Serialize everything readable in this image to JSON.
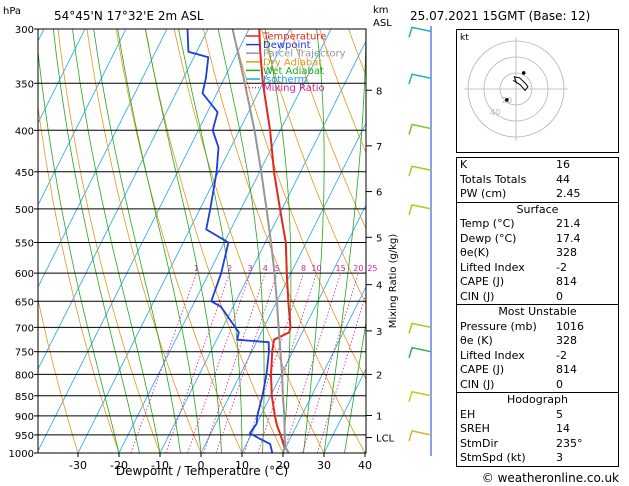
{
  "header": {
    "location": "54°45'N  17°32'E  2m  ASL",
    "datetime": "25.07.2021  15GMT  (Base: 12)",
    "p_unit": "hPa",
    "km_label": "km",
    "asl_label": "ASL",
    "mr_axis_label": "Mixing Ratio (g/kg)",
    "footer": "© weatheronline.co.uk"
  },
  "chart_data": {
    "type": "line",
    "title": "",
    "xlabel": "Dewpoint / Temperature (°C)",
    "ylabel": "hPa",
    "xlim": [
      -35,
      40
    ],
    "ylim": [
      1000,
      300
    ],
    "yscale": "log",
    "skew": true,
    "xticks": [
      -30,
      -20,
      -10,
      0,
      10,
      20,
      30,
      40
    ],
    "pressure_levels": [
      300,
      350,
      400,
      450,
      500,
      550,
      600,
      650,
      700,
      750,
      800,
      850,
      900,
      950,
      1000
    ],
    "legend": {
      "position": "top-center",
      "entries": [
        {
          "name": "Temperature",
          "color": "#e0281e",
          "style": "solid"
        },
        {
          "name": "Dewpoint",
          "color": "#1e3cdc",
          "style": "solid"
        },
        {
          "name": "Parcel Trajectory",
          "color": "#969696",
          "style": "solid"
        },
        {
          "name": "Dry Adiabat",
          "color": "#e6961e",
          "style": "solid"
        },
        {
          "name": "Wet Adiabat",
          "color": "#22a81e",
          "style": "solid"
        },
        {
          "name": "Isotherm",
          "color": "#1ea0e6",
          "style": "solid"
        },
        {
          "name": "Mixing Ratio",
          "color": "#d21ea0",
          "style": "dotted"
        }
      ]
    },
    "series": [
      {
        "name": "Temperature",
        "color": "#e0281e",
        "points": [
          [
            1000,
            21.4
          ],
          [
            975,
            19.0
          ],
          [
            950,
            17.2
          ],
          [
            925,
            15.2
          ],
          [
            900,
            13.5
          ],
          [
            850,
            10.3
          ],
          [
            800,
            7.5
          ],
          [
            750,
            5.0
          ],
          [
            725,
            4.0
          ],
          [
            710,
            6.8
          ],
          [
            700,
            6.5
          ],
          [
            650,
            2.8
          ],
          [
            600,
            -1.0
          ],
          [
            550,
            -5.0
          ],
          [
            500,
            -10.5
          ],
          [
            450,
            -16.5
          ],
          [
            400,
            -22.5
          ],
          [
            350,
            -30.0
          ],
          [
            320,
            -34.5
          ],
          [
            300,
            -37.5
          ]
        ]
      },
      {
        "name": "Dewpoint",
        "color": "#1e3cdc",
        "points": [
          [
            1000,
            17.4
          ],
          [
            975,
            15.8
          ],
          [
            960,
            12.5
          ],
          [
            945,
            9.5
          ],
          [
            920,
            10.0
          ],
          [
            900,
            9.2
          ],
          [
            850,
            8.0
          ],
          [
            800,
            6.4
          ],
          [
            750,
            4.2
          ],
          [
            730,
            3.0
          ],
          [
            725,
            -5.0
          ],
          [
            710,
            -5.5
          ],
          [
            660,
            -13.0
          ],
          [
            650,
            -16.0
          ],
          [
            600,
            -17.0
          ],
          [
            550,
            -19.0
          ],
          [
            530,
            -26.0
          ],
          [
            510,
            -27.0
          ],
          [
            500,
            -27.5
          ],
          [
            450,
            -30.5
          ],
          [
            420,
            -33.0
          ],
          [
            400,
            -36.5
          ],
          [
            380,
            -37.5
          ],
          [
            360,
            -43.5
          ],
          [
            345,
            -44.5
          ],
          [
            325,
            -46.5
          ],
          [
            320,
            -52.0
          ],
          [
            300,
            -55.0
          ]
        ]
      },
      {
        "name": "Parcel Trajectory",
        "color": "#969696",
        "points": [
          [
            1000,
            21.4
          ],
          [
            985,
            20.0
          ],
          [
            975,
            19.4
          ],
          [
            950,
            18.2
          ],
          [
            900,
            15.8
          ],
          [
            850,
            13.0
          ],
          [
            800,
            10.2
          ],
          [
            750,
            7.0
          ],
          [
            700,
            3.6
          ],
          [
            650,
            0.0
          ],
          [
            600,
            -4.0
          ],
          [
            550,
            -8.6
          ],
          [
            500,
            -13.8
          ],
          [
            450,
            -19.6
          ],
          [
            400,
            -26.3
          ],
          [
            350,
            -34.4
          ],
          [
            300,
            -44.0
          ]
        ]
      }
    ],
    "dry_adiabats_theta_C": [
      -30,
      -20,
      -10,
      0,
      10,
      20,
      30,
      40,
      50,
      60,
      70,
      80,
      90,
      100,
      110,
      120,
      130
    ],
    "wet_adiabats_C": [
      -20,
      -15,
      -10,
      -5,
      0,
      5,
      10,
      15,
      20,
      25,
      30,
      35
    ],
    "isotherms_C": [
      -100,
      -90,
      -80,
      -70,
      -60,
      -50,
      -40,
      -30,
      -20,
      -10,
      0,
      10,
      20,
      30,
      40
    ],
    "mixing_ratio_lines": [
      1,
      2,
      3,
      4,
      5,
      8,
      10,
      15,
      20,
      25
    ],
    "mixing_ratio_labels": [
      "1",
      "2",
      "3",
      "4",
      "5",
      "8",
      "10",
      "15",
      "20",
      "25"
    ],
    "km_scale": [
      {
        "label": "8",
        "p": 357
      },
      {
        "label": "7",
        "p": 418
      },
      {
        "label": "6",
        "p": 476
      },
      {
        "label": "5",
        "p": 542
      },
      {
        "label": "4",
        "p": 620
      },
      {
        "label": "3",
        "p": 707
      },
      {
        "label": "2",
        "p": 800
      },
      {
        "label": "1",
        "p": 899
      },
      {
        "label": "LCL",
        "p": 957
      }
    ],
    "wind_barbs": [
      {
        "p": 302,
        "color": "#20b4b4"
      },
      {
        "p": 345,
        "color": "#20b4b4"
      },
      {
        "p": 398,
        "color": "#78c81e"
      },
      {
        "p": 448,
        "color": "#9ad21e"
      },
      {
        "p": 500,
        "color": "#9ad21e"
      },
      {
        "p": 700,
        "color": "#9ad21e"
      },
      {
        "p": 750,
        "color": "#22b45a"
      },
      {
        "p": 850,
        "color": "#c8c81e"
      },
      {
        "p": 950,
        "color": "#dcb41e"
      }
    ],
    "hodograph": {
      "label": "kt",
      "ring_labels": [
        "20",
        "40"
      ],
      "trace": [
        [
          -0.8,
          2.5
        ],
        [
          1.2,
          1.2
        ],
        [
          2.6,
          -0.4
        ],
        [
          3.4,
          0.7
        ],
        [
          2.5,
          1.8
        ],
        [
          1.0,
          3.2
        ],
        [
          -0.5,
          3.5
        ],
        [
          0.2,
          1.6
        ]
      ]
    }
  },
  "indices": {
    "rows": [
      {
        "label": "K",
        "value": "16"
      },
      {
        "label": "Totals Totals",
        "value": "44"
      },
      {
        "label": "PW (cm)",
        "value": "2.45"
      }
    ]
  },
  "surface": {
    "title": "Surface",
    "rows": [
      {
        "label": "Temp (°C)",
        "value": "21.4"
      },
      {
        "label": "Dewp (°C)",
        "value": "17.4"
      },
      {
        "label": "θe(K)",
        "value": "328"
      },
      {
        "label": "Lifted Index",
        "value": "-2"
      },
      {
        "label": "CAPE (J)",
        "value": "814"
      },
      {
        "label": "CIN (J)",
        "value": "0"
      }
    ]
  },
  "most_unstable": {
    "title": "Most Unstable",
    "rows": [
      {
        "label": "Pressure (mb)",
        "value": "1016"
      },
      {
        "label": "θe (K)",
        "value": "328"
      },
      {
        "label": "Lifted Index",
        "value": "-2"
      },
      {
        "label": "CAPE (J)",
        "value": "814"
      },
      {
        "label": "CIN (J)",
        "value": "0"
      }
    ]
  },
  "hodograph_table": {
    "title": "Hodograph",
    "rows": [
      {
        "label": "EH",
        "value": "5"
      },
      {
        "label": "SREH",
        "value": "14"
      },
      {
        "label": "StmDir",
        "value": "235°"
      },
      {
        "label": "StmSpd (kt)",
        "value": "3"
      }
    ]
  }
}
